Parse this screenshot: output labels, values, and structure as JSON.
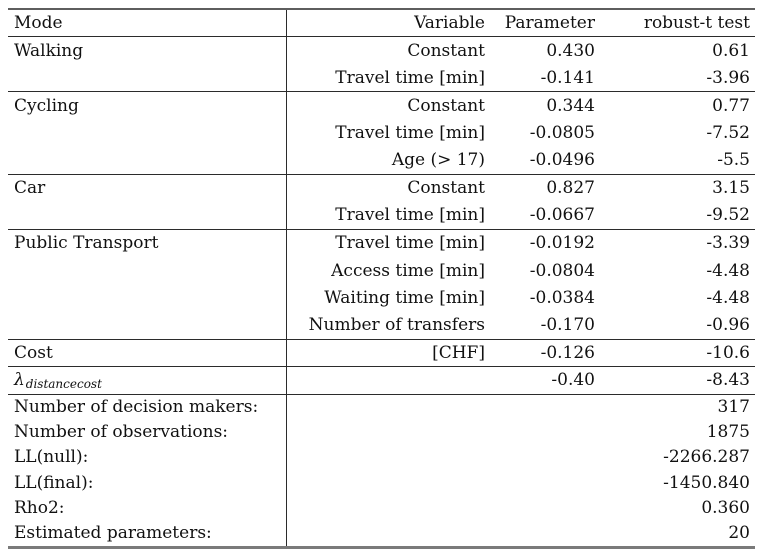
{
  "table": {
    "headers": {
      "mode": "Mode",
      "variable": "Variable",
      "parameter": "Parameter",
      "robust_t": "robust-t test"
    },
    "rows": [
      {
        "mode": "Walking",
        "variable": "Constant",
        "parameter": "0.430",
        "t": "0.61"
      },
      {
        "mode": "",
        "variable": "Travel time [min]",
        "parameter": "-0.141",
        "t": "-3.96"
      },
      {
        "mode": "Cycling",
        "variable": "Constant",
        "parameter": "0.344",
        "t": "0.77"
      },
      {
        "mode": "",
        "variable": "Travel time [min]",
        "parameter": "-0.0805",
        "t": "-7.52"
      },
      {
        "mode": "",
        "variable": "Age (> 17)",
        "parameter": "-0.0496",
        "t": "-5.5"
      },
      {
        "mode": "Car",
        "variable": "Constant",
        "parameter": "0.827",
        "t": "3.15"
      },
      {
        "mode": "",
        "variable": "Travel time [min]",
        "parameter": "-0.0667",
        "t": "-9.52"
      },
      {
        "mode": "Public Transport",
        "variable": "Travel time [min]",
        "parameter": "-0.0192",
        "t": "-3.39"
      },
      {
        "mode": "",
        "variable": "Access time [min]",
        "parameter": "-0.0804",
        "t": "-4.48"
      },
      {
        "mode": "",
        "variable": "Waiting time [min]",
        "parameter": "-0.0384",
        "t": "-4.48"
      },
      {
        "mode": "",
        "variable": "Number of transfers",
        "parameter": "-0.170",
        "t": "-0.96"
      },
      {
        "mode": "Cost",
        "variable": "[CHF]",
        "parameter": "-0.126",
        "t": "-10.6"
      }
    ],
    "lambda_row": {
      "symbol": "λ",
      "subscript": "distancecost",
      "parameter": "-0.40",
      "t": "-8.43"
    },
    "summary": [
      {
        "label": "Number of decision makers:",
        "value": "317"
      },
      {
        "label": "Number of observations:",
        "value": "1875"
      },
      {
        "label": "LL(null):",
        "value": "-2266.287"
      },
      {
        "label": "LL(final):",
        "value": "-1450.840"
      },
      {
        "label": "Rho2:",
        "value": "0.360"
      },
      {
        "label": "Estimated parameters:",
        "value": "20"
      }
    ]
  }
}
